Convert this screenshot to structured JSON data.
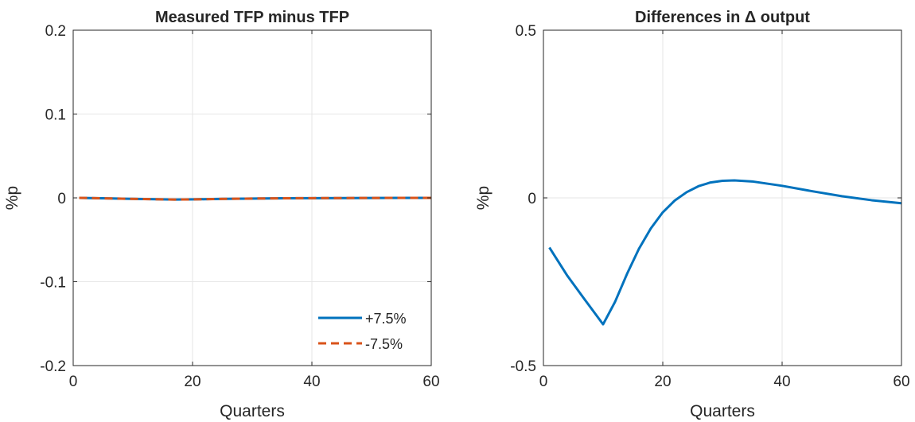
{
  "chart_data": [
    {
      "type": "line",
      "title": "Measured TFP minus TFP",
      "xlabel": "Quarters",
      "ylabel": "%p",
      "xlim": [
        0,
        60
      ],
      "ylim": [
        -0.2,
        0.2
      ],
      "xticks": [
        0,
        20,
        40,
        60
      ],
      "xtick_labels": [
        "0",
        "20",
        "40",
        "60"
      ],
      "yticks": [
        -0.2,
        -0.1,
        0,
        0.1,
        0.2
      ],
      "ytick_labels": [
        "-0.2",
        "-0.1",
        "0",
        "0.1",
        "0.2"
      ],
      "grid": true,
      "legend": "bottom-right",
      "series": [
        {
          "name": "+7.5%",
          "color": "#0072BD",
          "style": "solid",
          "x": [
            1,
            5,
            10,
            15,
            17,
            20,
            25,
            30,
            35,
            40,
            45,
            50,
            55,
            60
          ],
          "y": [
            0.0,
            -0.0005,
            -0.0012,
            -0.0018,
            -0.002,
            -0.0018,
            -0.0012,
            -0.0008,
            -0.0005,
            -0.0003,
            -0.0002,
            -0.0001,
            0.0,
            0.0
          ]
        },
        {
          "name": "-7.5%",
          "color": "#D95319",
          "style": "dashed",
          "x": [
            1,
            5,
            10,
            15,
            17,
            20,
            25,
            30,
            35,
            40,
            45,
            50,
            55,
            60
          ],
          "y": [
            0.0,
            -0.0005,
            -0.0012,
            -0.0018,
            -0.002,
            -0.0018,
            -0.0012,
            -0.0008,
            -0.0005,
            -0.0003,
            -0.0002,
            -0.0001,
            0.0,
            0.0
          ]
        }
      ]
    },
    {
      "type": "line",
      "title": "Differences in  Δ output",
      "xlabel": "Quarters",
      "ylabel": "%p",
      "xlim": [
        0,
        60
      ],
      "ylim": [
        -0.5,
        0.5
      ],
      "xticks": [
        0,
        20,
        40,
        60
      ],
      "xtick_labels": [
        "0",
        "20",
        "40",
        "60"
      ],
      "yticks": [
        -0.5,
        0,
        0.5
      ],
      "ytick_labels": [
        "-0.5",
        "0",
        "0.5"
      ],
      "grid": true,
      "series": [
        {
          "color": "#0072BD",
          "style": "solid",
          "x": [
            1,
            4,
            7,
            10,
            12,
            14,
            16,
            18,
            20,
            22,
            24,
            26,
            28,
            30,
            32,
            35,
            40,
            45,
            50,
            55,
            60
          ],
          "y": [
            -0.148,
            -0.232,
            -0.305,
            -0.377,
            -0.31,
            -0.227,
            -0.152,
            -0.091,
            -0.043,
            -0.008,
            0.017,
            0.035,
            0.046,
            0.051,
            0.052,
            0.049,
            0.036,
            0.02,
            0.005,
            -0.007,
            -0.016
          ]
        }
      ]
    }
  ]
}
